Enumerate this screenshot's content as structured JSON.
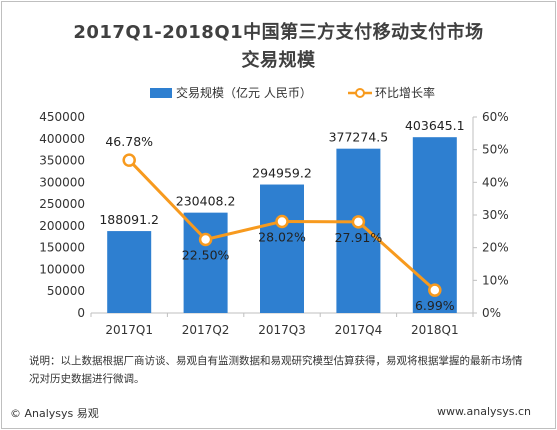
{
  "chart_data": {
    "type": "bar",
    "title": "2017Q1-2018Q1中国第三方支付移动支付市场",
    "subtitle": "交易规模",
    "categories": [
      "2017Q1",
      "2017Q2",
      "2017Q3",
      "2017Q4",
      "2018Q1"
    ],
    "series": [
      {
        "name": "交易规模（亿元 人民币）",
        "type": "bar",
        "axis": "left",
        "values": [
          188091.2,
          230408.2,
          294959.2,
          377274.5,
          403645.1
        ],
        "labels": [
          "188091.2",
          "230408.2",
          "294959.2",
          "377274.5",
          "403645.1"
        ]
      },
      {
        "name": "环比增长率",
        "type": "line",
        "axis": "right",
        "values": [
          46.78,
          22.5,
          28.02,
          27.91,
          6.99
        ],
        "labels": [
          "46.78%",
          "22.50%",
          "28.02%",
          "27.91%",
          "6.99%"
        ]
      }
    ],
    "y_left": {
      "ylim": [
        0,
        450000
      ],
      "ticks": [
        "0",
        "50000",
        "100000",
        "150000",
        "200000",
        "250000",
        "300000",
        "350000",
        "400000",
        "450000"
      ]
    },
    "y_right": {
      "ylim": [
        0,
        60
      ],
      "ticks": [
        "0%",
        "10%",
        "20%",
        "30%",
        "40%",
        "50%",
        "60%"
      ]
    },
    "grid": false,
    "legend_position": "top"
  },
  "colors": {
    "bar": "#2e7fd0",
    "line": "#f79a1e",
    "title": "#404040"
  },
  "note": "说明：以上数据根据厂商访谈、易观自有监测数据和易观研究模型估算获得，易观将根据掌握的最新市场情况对历史数据进行微调。",
  "footer": {
    "copyright": "© Analysys 易观",
    "website": "www.analysys.cn"
  }
}
